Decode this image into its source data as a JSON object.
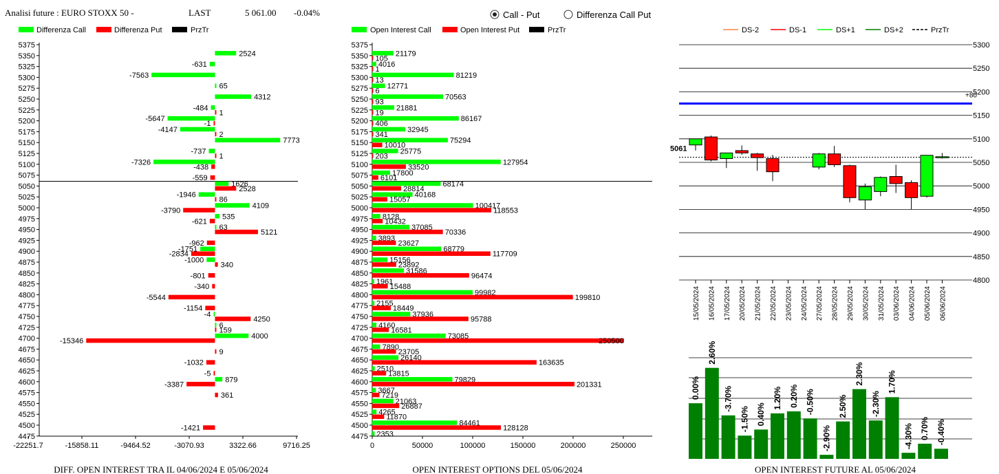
{
  "header": {
    "title": "Analisi future : EURO STOXX 50 -",
    "last_label": "LAST",
    "last_value": "5 061.00",
    "last_change": "-0.04%",
    "radio_call_put": "Call - Put",
    "radio_diff": "Differenza Call Put",
    "radio_selected": "Call - Put"
  },
  "colors": {
    "green": "#00ff00",
    "red": "#ff0000",
    "dark_green": "#008000",
    "blue": "#0000ff",
    "black": "#000000",
    "ds_minus2": "#ff8040"
  },
  "chart_data": [
    {
      "type": "bar",
      "orientation": "horizontal",
      "title": "DIFF. OPEN INTEREST TRA IL 04/06/2024 E 05/06/2024",
      "legend": [
        "Differenza Call",
        "Differenza Put",
        "PrzTr"
      ],
      "strikes": [
        5375,
        5350,
        5325,
        5300,
        5275,
        5250,
        5225,
        5200,
        5175,
        5150,
        5125,
        5100,
        5075,
        5050,
        5025,
        5000,
        4975,
        4950,
        4925,
        4900,
        4875,
        4850,
        4825,
        4800,
        4775,
        4750,
        4725,
        4700,
        4675,
        4650,
        4625,
        4600,
        4575,
        4550,
        4525,
        4500,
        4475
      ],
      "x_tick_labels": [
        "-22251.7",
        "-15858.11",
        "-9464.52",
        "-3070.93",
        "3322.66",
        "9716.25"
      ],
      "xlim": [
        -22251.7,
        9716.25
      ],
      "price_line_strike": 5061,
      "series": [
        {
          "name": "Differenza Call",
          "color": "#00ff00",
          "values": [
            null,
            2524,
            -631,
            -7563,
            65,
            4312,
            -484,
            -5647,
            -4147,
            7773,
            -737,
            -7326,
            null,
            1626,
            -1946,
            4109,
            535,
            63,
            null,
            -1751,
            -1000,
            null,
            null,
            null,
            null,
            -4,
            6,
            4000,
            null,
            null,
            null,
            879,
            null,
            null,
            null,
            null,
            null
          ]
        },
        {
          "name": "Differenza Put",
          "color": "#ff0000",
          "values": [
            null,
            null,
            null,
            null,
            null,
            null,
            1,
            -1,
            2,
            null,
            1,
            -438,
            -559,
            2528,
            86,
            -3790,
            -621,
            5121,
            -962,
            -2834,
            340,
            -801,
            -340,
            -5544,
            -1154,
            4250,
            159,
            -15346,
            9,
            -1032,
            -5,
            -3387,
            361,
            null,
            null,
            -1421,
            null
          ]
        }
      ]
    },
    {
      "type": "bar",
      "orientation": "horizontal",
      "title": "OPEN INTEREST OPTIONS DEL 05/06/2024",
      "legend": [
        "Open Interest Call",
        "Open Interest Put",
        "PrzTr"
      ],
      "strikes": [
        5375,
        5350,
        5325,
        5300,
        5275,
        5250,
        5225,
        5200,
        5175,
        5150,
        5125,
        5100,
        5075,
        5050,
        5025,
        5000,
        4975,
        4950,
        4925,
        4900,
        4875,
        4850,
        4825,
        4800,
        4775,
        4750,
        4725,
        4700,
        4675,
        4650,
        4625,
        4600,
        4575,
        4550,
        4525,
        4500,
        4475
      ],
      "x_ticks": [
        0,
        50000,
        100000,
        150000,
        200000,
        250000
      ],
      "xlim": [
        0,
        280000
      ],
      "price_line_strike": 5061,
      "series": [
        {
          "name": "Open Interest Call",
          "color": "#00ff00",
          "values": [
            null,
            21179,
            4016,
            81219,
            12771,
            70563,
            21881,
            86167,
            32945,
            75294,
            25775,
            127954,
            17800,
            68174,
            40168,
            100417,
            8128,
            37085,
            3893,
            68779,
            15156,
            31586,
            1961,
            99982,
            2155,
            37936,
            4160,
            73085,
            7890,
            26140,
            2510,
            79829,
            3667,
            21063,
            4265,
            84461,
            2353
          ]
        },
        {
          "name": "Open Interest Put",
          "color": "#ff0000",
          "values": [
            null,
            105,
            1,
            13,
            6,
            93,
            19,
            406,
            341,
            10010,
            203,
            33520,
            6101,
            28814,
            15057,
            118553,
            10432,
            70336,
            23627,
            117709,
            23892,
            96474,
            15488,
            199810,
            18449,
            95788,
            16581,
            250500,
            23705,
            163635,
            13815,
            201331,
            7219,
            26887,
            11870,
            128128,
            null
          ]
        }
      ]
    },
    {
      "type": "candlestick",
      "legend": [
        "DS-2",
        "DS-1",
        "DS+1",
        "DS+2",
        "PrzTr"
      ],
      "y_ticks": [
        4800,
        4850,
        4900,
        4950,
        5000,
        5050,
        5100,
        5150,
        5200,
        5250,
        5300
      ],
      "ylim": [
        4800,
        5300
      ],
      "last_label": "5061",
      "last_value": 5061,
      "blue_line_value": 5175,
      "blue_line_label": "+80",
      "dates": [
        "15/05/2024",
        "16/05/2024",
        "17/05/2024",
        "20/05/2024",
        "21/05/2024",
        "22/05/2024",
        "23/05/2024",
        "24/05/2024",
        "27/05/2024",
        "28/05/2024",
        "29/05/2024",
        "30/05/2024",
        "31/05/2024",
        "03/06/2024",
        "04/06/2024",
        "05/06/2024",
        "06/06/2024"
      ],
      "candles": [
        {
          "open": 5087,
          "high": 5100,
          "low": 5075,
          "close": 5100,
          "up": true
        },
        {
          "open": 5104,
          "high": 5107,
          "low": 5052,
          "close": 5055,
          "up": false
        },
        {
          "open": 5058,
          "high": 5070,
          "low": 5038,
          "close": 5070,
          "up": true
        },
        {
          "open": 5075,
          "high": 5086,
          "low": 5066,
          "close": 5070,
          "up": false
        },
        {
          "open": 5068,
          "high": 5070,
          "low": 5032,
          "close": 5060,
          "up": false
        },
        {
          "open": 5058,
          "high": 5066,
          "low": 5010,
          "close": 5030,
          "up": false
        },
        null,
        null,
        {
          "open": 5040,
          "high": 5070,
          "low": 5035,
          "close": 5068,
          "up": true
        },
        {
          "open": 5068,
          "high": 5085,
          "low": 5040,
          "close": 5045,
          "up": false
        },
        {
          "open": 5043,
          "high": 5045,
          "low": 4965,
          "close": 4975,
          "up": false
        },
        {
          "open": 4970,
          "high": 5005,
          "low": 4950,
          "close": 4998,
          "up": true
        },
        {
          "open": 4988,
          "high": 5020,
          "low": 4978,
          "close": 5018,
          "up": true
        },
        {
          "open": 5020,
          "high": 5045,
          "low": 4985,
          "close": 5005,
          "up": false
        },
        {
          "open": 5007,
          "high": 5012,
          "low": 4950,
          "close": 4975,
          "up": false
        },
        {
          "open": 4978,
          "high": 5065,
          "low": 4975,
          "close": 5065,
          "up": true
        },
        {
          "open": 5062,
          "high": 5070,
          "low": 5058,
          "close": 5062,
          "up": true
        }
      ]
    },
    {
      "type": "bar",
      "title": "OPEN INTEREST FUTURE AL 05/06/2024",
      "value_labels": [
        "0.00%",
        "2.60%",
        "-3.70%",
        "-1.50%",
        "0.40%",
        "1.20%",
        "0.20%",
        "-0.50%",
        "-2.90%",
        "2.50%",
        "2.30%",
        "-2.30%",
        "1.70%",
        "-4.30%",
        "0.70%",
        "-0.40%"
      ],
      "values": [
        0.0,
        2.6,
        -3.7,
        -1.5,
        0.4,
        1.2,
        0.2,
        -0.5,
        -2.9,
        2.5,
        2.3,
        -2.3,
        1.7,
        -4.3,
        0.7,
        -0.4
      ],
      "bar_levels": [
        0.55,
        0.9,
        0.43,
        0.23,
        0.29,
        0.45,
        0.47,
        0.4,
        0.04,
        0.37,
        0.69,
        0.38,
        0.61,
        0.06,
        0.15,
        0.1
      ],
      "bar_color": "#008000"
    }
  ]
}
